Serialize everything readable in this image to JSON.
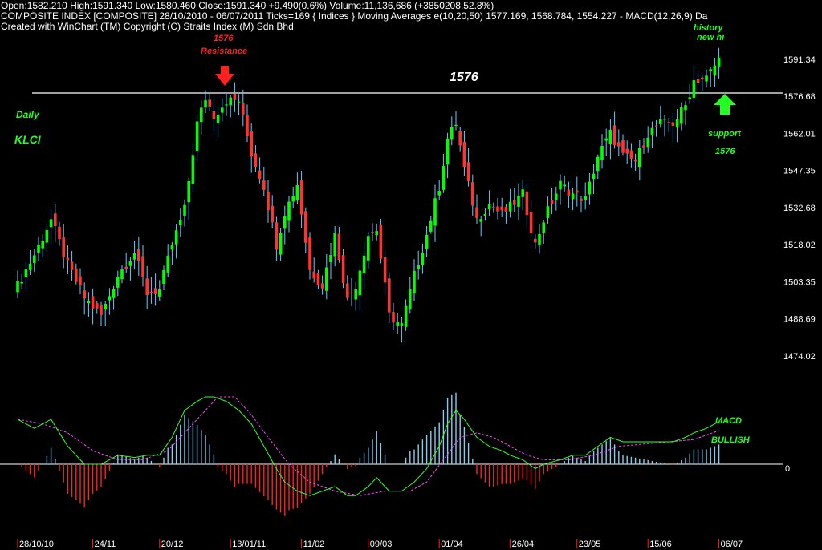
{
  "header": {
    "line1": "Open:1582.210   High:1591.340   Low:1580.460   Close:1591.340   +9.490(0.6%)   Volume:11,136,686 (+3850208,52.8%)",
    "line2": "COMPOSITE INDEX [COMPOSITE]   28/10/2010 - 06/07/2011   Ticks=169   { Indices } Moving Averages e(10,20,50) 1577.169,   1568.784,   1554.227 - MACD(12,26,9)     Da",
    "line3": "Created with WinChart (TM)   Copyright (C) Straits Index (M) Sdn Bhd"
  },
  "annotations": {
    "resistance_value": "1576",
    "resistance_label": "Resistance",
    "line_value": "1576",
    "daily": "Daily",
    "klci": "KLCI",
    "history": "history",
    "new_hi": "new hi",
    "support_label": "support",
    "support_value": "1576",
    "macd": "MACD",
    "bullish": "BULLISH"
  },
  "colors": {
    "background": "#000000",
    "up_candle": "#00ff00",
    "down_candle": "#ff3333",
    "wick": "#66ccff",
    "resistance_line": "#ffffff",
    "macd_line": "#33ff33",
    "signal_line": "#ff44ff",
    "hist_pos": "#88ccee",
    "hist_neg": "#ff2222",
    "annotation_red": "#ff2020",
    "annotation_green": "#22ff22"
  },
  "chart_data": [
    {
      "type": "candlestick",
      "title": "COMPOSITE INDEX [COMPOSITE]",
      "ylim": [
        1467,
        1600
      ],
      "y_ticks": [
        1591.34,
        1576.68,
        1562.01,
        1547.35,
        1532.68,
        1518.02,
        1503.35,
        1488.69,
        1474.02
      ],
      "y_tick_labels": [
        "1591.34",
        "1576.68",
        "1562.01",
        "1547.35",
        "1532.68",
        "1518.02",
        "1503.35",
        "1488.69",
        "1474.02"
      ],
      "x_tick_labels": [
        "28/10/10",
        "24/11",
        "20/12",
        "13/01/11",
        "11/02",
        "09/03",
        "01/04",
        "26/04",
        "23/05",
        "15/06",
        "06/07"
      ],
      "x_tick_index": [
        0,
        18,
        34,
        51,
        68,
        84,
        101,
        118,
        134,
        151,
        168
      ],
      "ticks": 169,
      "resistance_level": 1576,
      "close_anchors": [
        [
          0,
          1502
        ],
        [
          4,
          1514
        ],
        [
          8,
          1528
        ],
        [
          12,
          1510
        ],
        [
          16,
          1497
        ],
        [
          20,
          1490
        ],
        [
          24,
          1506
        ],
        [
          28,
          1515
        ],
        [
          31,
          1499
        ],
        [
          34,
          1500
        ],
        [
          37,
          1518
        ],
        [
          40,
          1532
        ],
        [
          43,
          1566
        ],
        [
          45,
          1576
        ],
        [
          47,
          1569
        ],
        [
          50,
          1575
        ],
        [
          53,
          1575
        ],
        [
          56,
          1554
        ],
        [
          59,
          1541
        ],
        [
          62,
          1518
        ],
        [
          64,
          1531
        ],
        [
          67,
          1542
        ],
        [
          70,
          1508
        ],
        [
          73,
          1502
        ],
        [
          76,
          1522
        ],
        [
          79,
          1496
        ],
        [
          81,
          1502
        ],
        [
          84,
          1522
        ],
        [
          86,
          1524
        ],
        [
          89,
          1490
        ],
        [
          92,
          1486
        ],
        [
          95,
          1506
        ],
        [
          98,
          1522
        ],
        [
          101,
          1541
        ],
        [
          103,
          1560
        ],
        [
          105,
          1566
        ],
        [
          107,
          1548
        ],
        [
          110,
          1528
        ],
        [
          113,
          1534
        ],
        [
          116,
          1530
        ],
        [
          118,
          1533
        ],
        [
          121,
          1538
        ],
        [
          124,
          1518
        ],
        [
          126,
          1528
        ],
        [
          130,
          1542
        ],
        [
          133,
          1538
        ],
        [
          136,
          1536
        ],
        [
          139,
          1553
        ],
        [
          142,
          1562
        ],
        [
          145,
          1553
        ],
        [
          148,
          1551
        ],
        [
          151,
          1562
        ],
        [
          154,
          1566
        ],
        [
          157,
          1566
        ],
        [
          160,
          1573
        ],
        [
          162,
          1583
        ],
        [
          165,
          1584
        ],
        [
          168,
          1591.34
        ]
      ]
    },
    {
      "type": "line",
      "title": "MACD(12,26,9)",
      "ylim": [
        -14,
        23
      ],
      "y_tick_labels": [
        "0"
      ],
      "series": [
        {
          "name": "MACD",
          "anchors": [
            [
              0,
              10
            ],
            [
              4,
              8
            ],
            [
              8,
              10
            ],
            [
              12,
              4
            ],
            [
              16,
              0
            ],
            [
              20,
              0
            ],
            [
              24,
              2
            ],
            [
              28,
              1.5
            ],
            [
              31,
              2
            ],
            [
              34,
              2
            ],
            [
              37,
              6
            ],
            [
              40,
              12
            ],
            [
              43,
              14
            ],
            [
              45,
              15
            ],
            [
              47,
              15
            ],
            [
              50,
              14
            ],
            [
              53,
              12
            ],
            [
              56,
              9
            ],
            [
              59,
              4
            ],
            [
              62,
              -1
            ],
            [
              64,
              -4
            ],
            [
              67,
              -6
            ],
            [
              70,
              -7
            ],
            [
              73,
              -6
            ],
            [
              76,
              -5
            ],
            [
              79,
              -7
            ],
            [
              81,
              -7
            ],
            [
              84,
              -5
            ],
            [
              86,
              -3
            ],
            [
              89,
              -6
            ],
            [
              92,
              -6
            ],
            [
              95,
              -4
            ],
            [
              98,
              -1
            ],
            [
              101,
              4
            ],
            [
              103,
              9
            ],
            [
              105,
              12
            ],
            [
              107,
              10
            ],
            [
              110,
              6
            ],
            [
              113,
              4
            ],
            [
              116,
              3
            ],
            [
              118,
              2
            ],
            [
              121,
              1
            ],
            [
              124,
              -1
            ],
            [
              126,
              0
            ],
            [
              130,
              1
            ],
            [
              133,
              2
            ],
            [
              136,
              2
            ],
            [
              139,
              4
            ],
            [
              142,
              6
            ],
            [
              145,
              5
            ],
            [
              148,
              5
            ],
            [
              151,
              5
            ],
            [
              154,
              5
            ],
            [
              157,
              5
            ],
            [
              160,
              6
            ],
            [
              162,
              7
            ],
            [
              165,
              8
            ],
            [
              168,
              9.5
            ]
          ]
        },
        {
          "name": "Signal",
          "anchors": [
            [
              0,
              10
            ],
            [
              6,
              9
            ],
            [
              12,
              7
            ],
            [
              18,
              3
            ],
            [
              24,
              1
            ],
            [
              30,
              1
            ],
            [
              36,
              3
            ],
            [
              42,
              9
            ],
            [
              48,
              15
            ],
            [
              52,
              15
            ],
            [
              56,
              11
            ],
            [
              60,
              6
            ],
            [
              65,
              0
            ],
            [
              70,
              -4
            ],
            [
              76,
              -6
            ],
            [
              82,
              -7
            ],
            [
              88,
              -6
            ],
            [
              94,
              -6
            ],
            [
              98,
              -4
            ],
            [
              102,
              1
            ],
            [
              106,
              6
            ],
            [
              110,
              7
            ],
            [
              114,
              6
            ],
            [
              118,
              4
            ],
            [
              122,
              2
            ],
            [
              126,
              1
            ],
            [
              132,
              1
            ],
            [
              138,
              2
            ],
            [
              144,
              4
            ],
            [
              150,
              4.5
            ],
            [
              156,
              5
            ],
            [
              162,
              5.5
            ],
            [
              168,
              7.5
            ]
          ]
        }
      ]
    }
  ]
}
